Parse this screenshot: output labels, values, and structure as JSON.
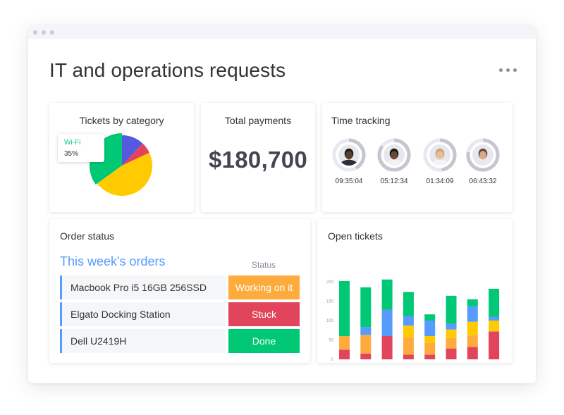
{
  "page": {
    "title": "IT and operations requests"
  },
  "window": {
    "menu_icon": "more-horizontal-icon"
  },
  "cards": {
    "tickets_by_category": {
      "title": "Tickets by category",
      "tooltip": {
        "label": "Wi-Fi",
        "value": "35%"
      },
      "slices": [
        {
          "name": "Wi-Fi",
          "percent": 35,
          "color": "#00c875"
        },
        {
          "name": "",
          "percent": 12,
          "color": "#5559df"
        },
        {
          "name": "",
          "percent": 6,
          "color": "#e2445c"
        },
        {
          "name": "",
          "percent": 47,
          "color": "#ffcb00"
        }
      ]
    },
    "total_payments": {
      "title": "Total payments",
      "value": "$180,700"
    },
    "time_tracking": {
      "title": "Time tracking",
      "people": [
        {
          "time": "09:35:04",
          "progress": 0.42,
          "skin": "#5a3d2b",
          "hair": "#1b1b1b",
          "shirt": "#2b2f3a"
        },
        {
          "time": "05:12:34",
          "progress": 0.85,
          "skin": "#6b4a35",
          "hair": "#151515",
          "shirt": "#f2f2f2"
        },
        {
          "time": "01:34:09",
          "progress": 0.48,
          "skin": "#e6bfa2",
          "hair": "#c9a46a",
          "shirt": "#f4f4f4"
        },
        {
          "time": "06:43:32",
          "progress": 0.78,
          "skin": "#d9a88a",
          "hair": "#6a4a36",
          "shirt": "#e9e9e9"
        }
      ]
    },
    "order_status": {
      "title": "Order status",
      "heading": "This week's orders",
      "status_header": "Status",
      "orders": [
        {
          "item": "Macbook Pro i5 16GB 256SSD",
          "status": "Working on it",
          "color": "#fdab3d"
        },
        {
          "item": "Elgato Docking Station",
          "status": "Stuck",
          "color": "#e2445c"
        },
        {
          "item": "Dell U2419H",
          "status": "Done",
          "color": "#00c875"
        }
      ]
    },
    "open_tickets": {
      "title": "Open tickets"
    }
  },
  "chart_data": {
    "type": "bar",
    "stacked": true,
    "yticks": [
      0,
      50,
      100,
      150,
      200
    ],
    "ylim": [
      0,
      200
    ],
    "grid": false,
    "legend": "none",
    "categories": [
      "",
      "",
      "",
      "",
      "",
      "",
      "",
      ""
    ],
    "avatars": [
      {
        "skin": "#e2b89a",
        "hair": "#3a2a20",
        "shirt": "#2f3a4a"
      },
      {
        "skin": "#b07a5a",
        "hair": "#d24a5a",
        "shirt": "#3a2f3f"
      },
      {
        "skin": "#7a4e34",
        "hair": "#161616",
        "shirt": "#2b2f3a"
      },
      {
        "skin": "#6b4a35",
        "hair": "#151515",
        "shirt": "#4a6fd0"
      },
      {
        "skin": "#c99575",
        "hair": "#3a2418",
        "shirt": "#e8e8e8"
      },
      {
        "skin": "#e6c2a8",
        "hair": "#6a4a36",
        "shirt": "#f0f0f0"
      },
      {
        "skin": "#e6bfa2",
        "hair": "#c9a46a",
        "shirt": "#f4f4f4"
      },
      {
        "skin": "#5a3d2b",
        "hair": "#1b1b1b",
        "shirt": "#2b2f3a"
      }
    ],
    "series": [
      {
        "color": "#e2445c",
        "values": [
          25,
          15,
          60,
          12,
          12,
          28,
          32,
          72
        ]
      },
      {
        "color": "#fdab3d",
        "values": [
          35,
          48,
          0,
          45,
          30,
          27,
          30,
          0
        ]
      },
      {
        "color": "#ffcb00",
        "values": [
          0,
          0,
          0,
          30,
          18,
          22,
          35,
          28
        ]
      },
      {
        "color": "#579bfc",
        "values": [
          0,
          20,
          68,
          25,
          40,
          15,
          40,
          10
        ]
      },
      {
        "color": "#00c875",
        "values": [
          142,
          103,
          78,
          62,
          16,
          72,
          18,
          72
        ]
      }
    ]
  }
}
